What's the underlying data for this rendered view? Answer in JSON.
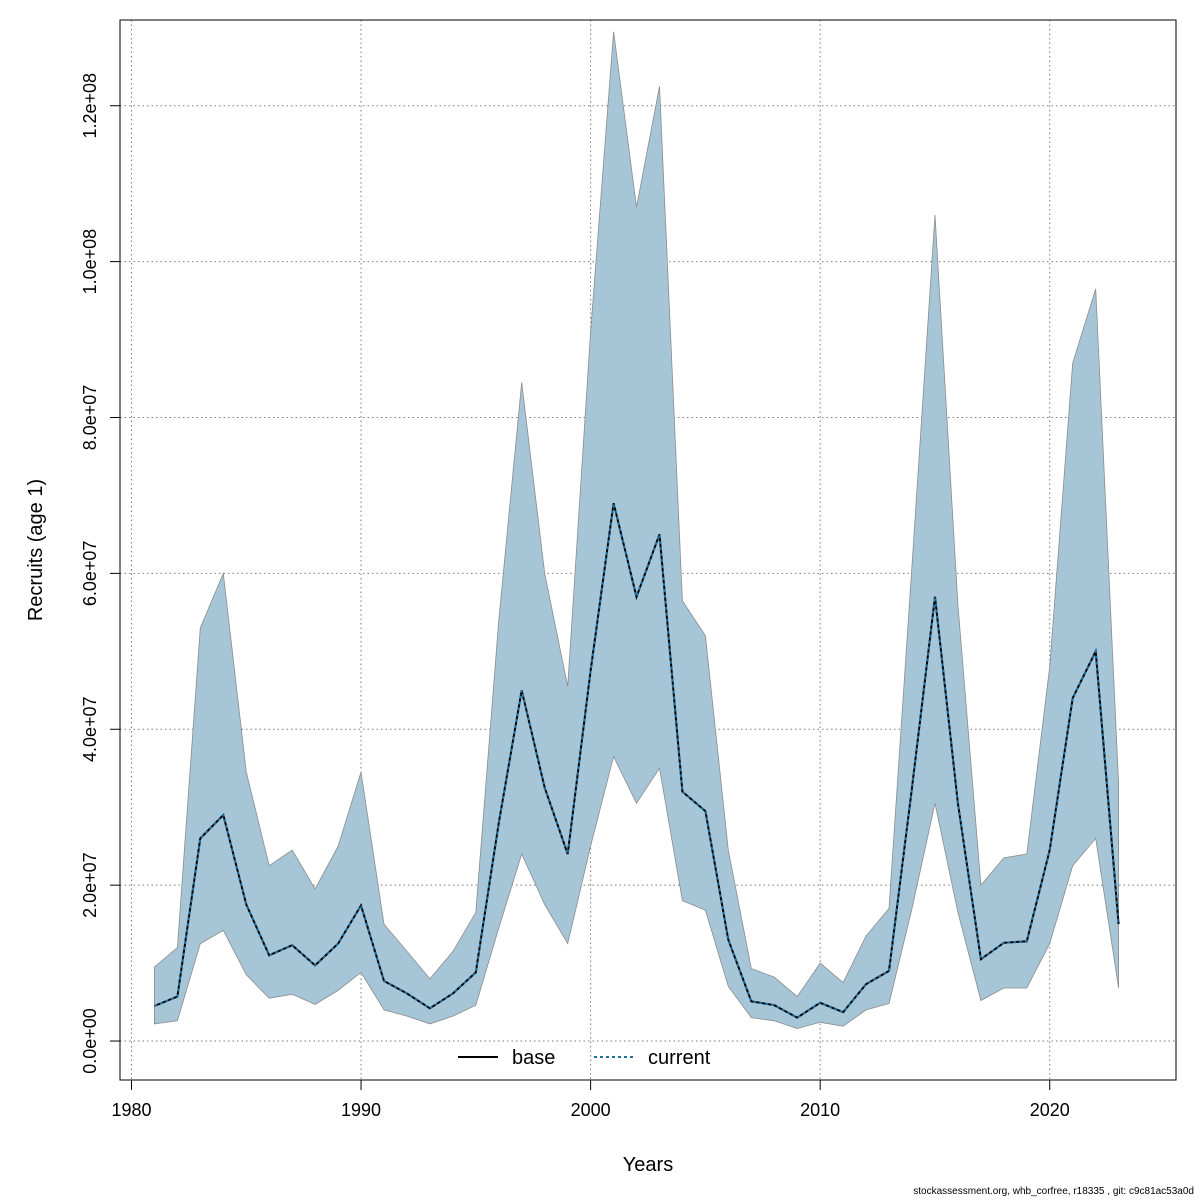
{
  "chart_data": {
    "type": "area",
    "xlabel": "Years",
    "ylabel": "Recruits (age 1)",
    "xlim": [
      1979.5,
      2025.5
    ],
    "ylim": [
      -5000000,
      131000000
    ],
    "x_ticks": [
      1980,
      1990,
      2000,
      2010,
      2020
    ],
    "x_tick_labels": [
      "1980",
      "1990",
      "2000",
      "2010",
      "2020"
    ],
    "y_ticks": [
      0,
      20000000,
      40000000,
      60000000,
      80000000,
      100000000,
      120000000
    ],
    "y_tick_labels": [
      "0.0e+00",
      "2.0e+07",
      "4.0e+07",
      "6.0e+07",
      "8.0e+07",
      "1.0e+08",
      "1.2e+08"
    ],
    "grid": true,
    "legend_position": "bottom-center",
    "colors": {
      "band_fill": "#a6c5d6",
      "band_stroke": "#8c8c8c",
      "base_line": "#000000",
      "current_line": "#1f6fa0",
      "grid": "#7a7a7a"
    },
    "x": [
      1981,
      1982,
      1983,
      1984,
      1985,
      1986,
      1987,
      1988,
      1989,
      1990,
      1991,
      1992,
      1993,
      1994,
      1995,
      1996,
      1997,
      1998,
      1999,
      2000,
      2001,
      2002,
      2003,
      2004,
      2005,
      2006,
      2007,
      2008,
      2009,
      2010,
      2011,
      2012,
      2013,
      2014,
      2015,
      2016,
      2017,
      2018,
      2019,
      2020,
      2021,
      2022,
      2023
    ],
    "band": {
      "upper": [
        9500000,
        12000000,
        53000000,
        60000000,
        34500000,
        22500000,
        24500000,
        19500000,
        25000000,
        34500000,
        15000000,
        11500000,
        8000000,
        11500000,
        16500000,
        54000000,
        84500000,
        60000000,
        45500000,
        91000000,
        129500000,
        107000000,
        122500000,
        56500000,
        52000000,
        24500000,
        9300000,
        8200000,
        5700000,
        10000000,
        7500000,
        13500000,
        17000000,
        61000000,
        106000000,
        56000000,
        20000000,
        23500000,
        24000000,
        48000000,
        87000000,
        96500000,
        33000000
      ],
      "lower": [
        2200000,
        2600000,
        12500000,
        14200000,
        8500000,
        5500000,
        6000000,
        4700000,
        6500000,
        8800000,
        4000000,
        3200000,
        2200000,
        3200000,
        4600000,
        14500000,
        24000000,
        17500000,
        12500000,
        25000000,
        36500000,
        30500000,
        35000000,
        18000000,
        16800000,
        7000000,
        3000000,
        2600000,
        1600000,
        2400000,
        1900000,
        4000000,
        4800000,
        17000000,
        30500000,
        16500000,
        5200000,
        6800000,
        6800000,
        12500000,
        22500000,
        26000000,
        6800000
      ]
    },
    "series": [
      {
        "name": "base",
        "values": [
          4500000,
          5700000,
          26000000,
          29000000,
          17500000,
          11000000,
          12300000,
          9700000,
          12500000,
          17400000,
          7700000,
          6100000,
          4200000,
          6100000,
          8800000,
          28000000,
          45000000,
          32500000,
          24000000,
          47500000,
          69000000,
          57000000,
          65000000,
          32000000,
          29500000,
          13000000,
          5100000,
          4600000,
          3000000,
          4900000,
          3700000,
          7300000,
          9000000,
          32500000,
          57000000,
          30500000,
          10500000,
          12600000,
          12800000,
          24500000,
          44000000,
          50000000,
          15000000
        ]
      },
      {
        "name": "current",
        "values": [
          4500000,
          5700000,
          26000000,
          29000000,
          17500000,
          11000000,
          12300000,
          9700000,
          12500000,
          17400000,
          7700000,
          6100000,
          4200000,
          6100000,
          8800000,
          28000000,
          45000000,
          32500000,
          24000000,
          47500000,
          69000000,
          57000000,
          65000000,
          32000000,
          29500000,
          13000000,
          5100000,
          4600000,
          3000000,
          4900000,
          3700000,
          7300000,
          9000000,
          32500000,
          57000000,
          30500000,
          10500000,
          12600000,
          12800000,
          24500000,
          44000000,
          50000000,
          15000000
        ]
      }
    ],
    "legend": [
      "base",
      "current"
    ]
  },
  "footnote": "stockassessment.org, whb_corfree, r18335 , git: c9c81ac53a0d"
}
